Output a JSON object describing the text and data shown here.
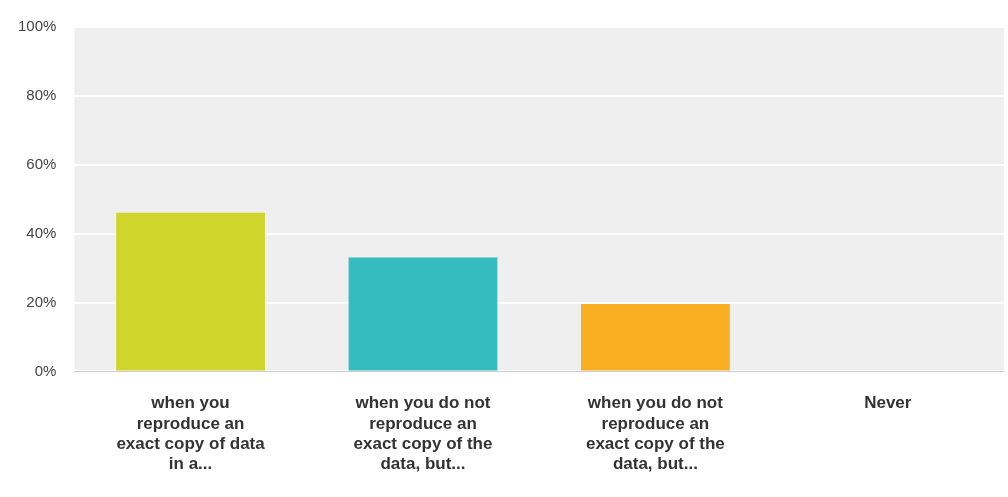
{
  "chart_data": {
    "type": "bar",
    "categories": [
      "when you reproduce an exact copy of data in a...",
      "when you do not reproduce an exact copy of the data, but...",
      "when you do not reproduce an exact copy of the data, but...",
      "Never"
    ],
    "values": [
      46.1,
      33.1,
      19.6,
      0
    ],
    "colors": [
      "#cfd52a",
      "#34bcbf",
      "#f7ae21",
      "#999999"
    ],
    "ylim": [
      0,
      100
    ],
    "yticks": [
      {
        "value": 0,
        "label": "0%"
      },
      {
        "value": 20,
        "label": "20%"
      },
      {
        "value": 40,
        "label": "40%"
      },
      {
        "value": 60,
        "label": "60%"
      },
      {
        "value": 80,
        "label": "80%"
      },
      {
        "value": 100,
        "label": "100%"
      }
    ],
    "grid": "y",
    "legend": false
  }
}
